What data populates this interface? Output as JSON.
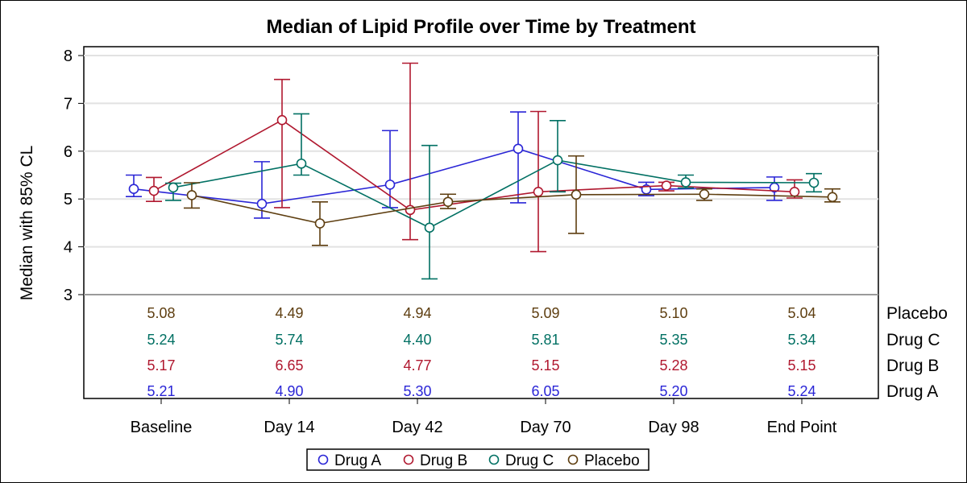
{
  "chart_data": {
    "type": "line",
    "title": "Median of Lipid Profile over Time by Treatment",
    "ylabel": "Median with 85% CL",
    "xlabel": "",
    "ylim": [
      3,
      8.2
    ],
    "yticks": [
      3,
      4,
      5,
      6,
      7,
      8
    ],
    "grid": true,
    "legend_position": "bottom",
    "categories": [
      "Baseline",
      "Day 14",
      "Day 42",
      "Day 70",
      "Day 98",
      "End Point"
    ],
    "series": [
      {
        "name": "Drug A",
        "color": "#2a25d6",
        "values": [
          5.21,
          4.9,
          5.3,
          6.05,
          5.2,
          5.24
        ],
        "lower": [
          5.05,
          4.6,
          4.82,
          4.92,
          5.07,
          4.97
        ],
        "upper": [
          5.5,
          5.78,
          6.43,
          6.82,
          5.35,
          5.46
        ],
        "table": [
          "5.21",
          "4.90",
          "5.30",
          "6.05",
          "5.20",
          "5.24"
        ]
      },
      {
        "name": "Drug B",
        "color": "#b0182f",
        "values": [
          5.17,
          6.65,
          4.77,
          5.15,
          5.28,
          5.15
        ],
        "lower": [
          4.95,
          4.82,
          4.15,
          3.9,
          5.17,
          5.02
        ],
        "upper": [
          5.45,
          7.5,
          7.84,
          6.83,
          5.35,
          5.4
        ],
        "table": [
          "5.17",
          "6.65",
          "4.77",
          "5.15",
          "5.28",
          "5.15"
        ]
      },
      {
        "name": "Drug C",
        "color": "#017063",
        "values": [
          5.24,
          5.74,
          4.4,
          5.81,
          5.35,
          5.34
        ],
        "lower": [
          4.97,
          5.5,
          3.33,
          5.15,
          5.23,
          5.15
        ],
        "upper": [
          5.33,
          6.78,
          6.12,
          6.64,
          5.5,
          5.53
        ],
        "table": [
          "5.24",
          "5.74",
          "4.40",
          "5.81",
          "5.35",
          "5.34"
        ]
      },
      {
        "name": "Placebo",
        "color": "#5e3e10",
        "values": [
          5.08,
          4.49,
          4.94,
          5.09,
          5.1,
          5.04
        ],
        "lower": [
          4.81,
          4.03,
          4.8,
          4.28,
          4.97,
          4.94
        ],
        "upper": [
          5.34,
          4.94,
          5.1,
          5.9,
          5.21,
          5.21
        ],
        "table": [
          "5.08",
          "4.49",
          "4.94",
          "5.09",
          "5.10",
          "5.04"
        ]
      }
    ],
    "table_row_order": [
      "Placebo",
      "Drug C",
      "Drug B",
      "Drug A"
    ]
  }
}
